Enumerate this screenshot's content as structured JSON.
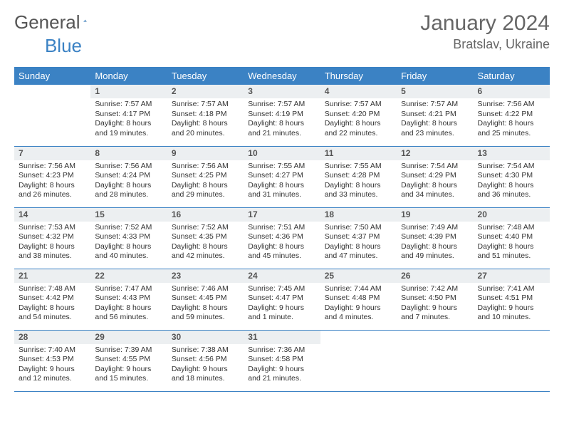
{
  "logo": {
    "text1": "General",
    "text2": "Blue"
  },
  "title": "January 2024",
  "location": "Bratslav, Ukraine",
  "colors": {
    "header_bg": "#3b82c4",
    "header_text": "#ffffff",
    "daynum_bg": "#eceff1",
    "row_divider": "#3b82c4",
    "page_bg": "#ffffff",
    "text": "#333333",
    "title_color": "#666666"
  },
  "typography": {
    "title_fontsize": 30,
    "location_fontsize": 18,
    "weekday_fontsize": 13,
    "daynum_fontsize": 12,
    "body_fontsize": 10.5
  },
  "weekdays": [
    "Sunday",
    "Monday",
    "Tuesday",
    "Wednesday",
    "Thursday",
    "Friday",
    "Saturday"
  ],
  "weeks": [
    [
      null,
      {
        "n": "1",
        "sr": "7:57 AM",
        "ss": "4:17 PM",
        "dl": "8 hours and 19 minutes."
      },
      {
        "n": "2",
        "sr": "7:57 AM",
        "ss": "4:18 PM",
        "dl": "8 hours and 20 minutes."
      },
      {
        "n": "3",
        "sr": "7:57 AM",
        "ss": "4:19 PM",
        "dl": "8 hours and 21 minutes."
      },
      {
        "n": "4",
        "sr": "7:57 AM",
        "ss": "4:20 PM",
        "dl": "8 hours and 22 minutes."
      },
      {
        "n": "5",
        "sr": "7:57 AM",
        "ss": "4:21 PM",
        "dl": "8 hours and 23 minutes."
      },
      {
        "n": "6",
        "sr": "7:56 AM",
        "ss": "4:22 PM",
        "dl": "8 hours and 25 minutes."
      }
    ],
    [
      {
        "n": "7",
        "sr": "7:56 AM",
        "ss": "4:23 PM",
        "dl": "8 hours and 26 minutes."
      },
      {
        "n": "8",
        "sr": "7:56 AM",
        "ss": "4:24 PM",
        "dl": "8 hours and 28 minutes."
      },
      {
        "n": "9",
        "sr": "7:56 AM",
        "ss": "4:25 PM",
        "dl": "8 hours and 29 minutes."
      },
      {
        "n": "10",
        "sr": "7:55 AM",
        "ss": "4:27 PM",
        "dl": "8 hours and 31 minutes."
      },
      {
        "n": "11",
        "sr": "7:55 AM",
        "ss": "4:28 PM",
        "dl": "8 hours and 33 minutes."
      },
      {
        "n": "12",
        "sr": "7:54 AM",
        "ss": "4:29 PM",
        "dl": "8 hours and 34 minutes."
      },
      {
        "n": "13",
        "sr": "7:54 AM",
        "ss": "4:30 PM",
        "dl": "8 hours and 36 minutes."
      }
    ],
    [
      {
        "n": "14",
        "sr": "7:53 AM",
        "ss": "4:32 PM",
        "dl": "8 hours and 38 minutes."
      },
      {
        "n": "15",
        "sr": "7:52 AM",
        "ss": "4:33 PM",
        "dl": "8 hours and 40 minutes."
      },
      {
        "n": "16",
        "sr": "7:52 AM",
        "ss": "4:35 PM",
        "dl": "8 hours and 42 minutes."
      },
      {
        "n": "17",
        "sr": "7:51 AM",
        "ss": "4:36 PM",
        "dl": "8 hours and 45 minutes."
      },
      {
        "n": "18",
        "sr": "7:50 AM",
        "ss": "4:37 PM",
        "dl": "8 hours and 47 minutes."
      },
      {
        "n": "19",
        "sr": "7:49 AM",
        "ss": "4:39 PM",
        "dl": "8 hours and 49 minutes."
      },
      {
        "n": "20",
        "sr": "7:48 AM",
        "ss": "4:40 PM",
        "dl": "8 hours and 51 minutes."
      }
    ],
    [
      {
        "n": "21",
        "sr": "7:48 AM",
        "ss": "4:42 PM",
        "dl": "8 hours and 54 minutes."
      },
      {
        "n": "22",
        "sr": "7:47 AM",
        "ss": "4:43 PM",
        "dl": "8 hours and 56 minutes."
      },
      {
        "n": "23",
        "sr": "7:46 AM",
        "ss": "4:45 PM",
        "dl": "8 hours and 59 minutes."
      },
      {
        "n": "24",
        "sr": "7:45 AM",
        "ss": "4:47 PM",
        "dl": "9 hours and 1 minute."
      },
      {
        "n": "25",
        "sr": "7:44 AM",
        "ss": "4:48 PM",
        "dl": "9 hours and 4 minutes."
      },
      {
        "n": "26",
        "sr": "7:42 AM",
        "ss": "4:50 PM",
        "dl": "9 hours and 7 minutes."
      },
      {
        "n": "27",
        "sr": "7:41 AM",
        "ss": "4:51 PM",
        "dl": "9 hours and 10 minutes."
      }
    ],
    [
      {
        "n": "28",
        "sr": "7:40 AM",
        "ss": "4:53 PM",
        "dl": "9 hours and 12 minutes."
      },
      {
        "n": "29",
        "sr": "7:39 AM",
        "ss": "4:55 PM",
        "dl": "9 hours and 15 minutes."
      },
      {
        "n": "30",
        "sr": "7:38 AM",
        "ss": "4:56 PM",
        "dl": "9 hours and 18 minutes."
      },
      {
        "n": "31",
        "sr": "7:36 AM",
        "ss": "4:58 PM",
        "dl": "9 hours and 21 minutes."
      },
      null,
      null,
      null
    ]
  ],
  "labels": {
    "sunrise": "Sunrise:",
    "sunset": "Sunset:",
    "daylight": "Daylight:"
  }
}
